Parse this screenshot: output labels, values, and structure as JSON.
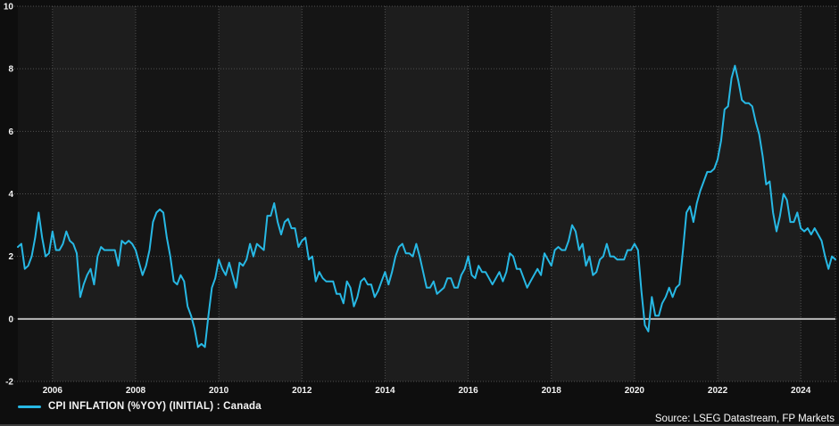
{
  "legend": {
    "series_label": "CPI INFLATION (%YOY) (INITIAL) : Canada"
  },
  "source": "Source: LSEG Datastream, FP Markets",
  "colors": {
    "line": "#27b8e4",
    "band_dark": "#151515",
    "band_light": "#1d1d1d",
    "margin_bg": "#0e0e0e",
    "gridline": "#505050",
    "zero_line": "#b8b8b8",
    "tick_text": "#f2f2f2"
  },
  "chart_data": {
    "type": "line",
    "title": "",
    "xlabel": "",
    "ylabel": "",
    "ylim": [
      -2,
      10
    ],
    "yticks": [
      -2,
      0,
      2,
      4,
      6,
      8,
      10
    ],
    "xticks": [
      2006,
      2008,
      2010,
      2012,
      2014,
      2016,
      2018,
      2020,
      2022,
      2024
    ],
    "grid": "dotted",
    "zero_line": 0,
    "legend_position": "bottom-left",
    "x_start": {
      "year": 2005,
      "month": 3
    },
    "x_end": {
      "year": 2024,
      "month": 11
    },
    "frequency": "monthly",
    "series": [
      {
        "name": "CPI INFLATION (%YOY) (INITIAL) : Canada",
        "color": "#27b8e4",
        "values": [
          2.3,
          2.4,
          1.6,
          1.7,
          2.0,
          2.6,
          3.4,
          2.6,
          2.0,
          2.1,
          2.8,
          2.2,
          2.2,
          2.4,
          2.8,
          2.5,
          2.4,
          2.1,
          0.7,
          1.1,
          1.4,
          1.6,
          1.1,
          2.0,
          2.3,
          2.2,
          2.2,
          2.2,
          2.2,
          1.7,
          2.5,
          2.4,
          2.5,
          2.4,
          2.2,
          1.8,
          1.4,
          1.7,
          2.2,
          3.1,
          3.4,
          3.5,
          3.4,
          2.6,
          2.0,
          1.2,
          1.1,
          1.4,
          1.2,
          0.4,
          0.1,
          -0.3,
          -0.9,
          -0.8,
          -0.9,
          0.1,
          1.0,
          1.3,
          1.9,
          1.6,
          1.4,
          1.8,
          1.4,
          1.0,
          1.8,
          1.7,
          1.9,
          2.4,
          2.0,
          2.4,
          2.3,
          2.2,
          3.3,
          3.3,
          3.7,
          3.1,
          2.7,
          3.1,
          3.2,
          2.9,
          2.9,
          2.3,
          2.5,
          2.6,
          1.9,
          2.0,
          1.2,
          1.5,
          1.3,
          1.2,
          1.2,
          1.2,
          0.8,
          0.8,
          0.5,
          1.2,
          1.0,
          0.4,
          0.7,
          1.2,
          1.3,
          1.1,
          1.1,
          0.7,
          0.9,
          1.2,
          1.5,
          1.1,
          1.5,
          2.0,
          2.3,
          2.4,
          2.1,
          2.1,
          2.0,
          2.4,
          2.0,
          1.5,
          1.0,
          1.0,
          1.2,
          0.8,
          0.9,
          1.0,
          1.3,
          1.3,
          1.0,
          1.0,
          1.4,
          1.6,
          2.0,
          1.4,
          1.3,
          1.7,
          1.5,
          1.5,
          1.3,
          1.1,
          1.3,
          1.5,
          1.2,
          1.5,
          2.1,
          2.0,
          1.6,
          1.6,
          1.3,
          1.0,
          1.2,
          1.4,
          1.6,
          1.4,
          2.1,
          1.9,
          1.7,
          2.2,
          2.3,
          2.2,
          2.2,
          2.5,
          3.0,
          2.8,
          2.2,
          2.4,
          1.7,
          2.0,
          1.4,
          1.5,
          1.9,
          2.0,
          2.4,
          2.0,
          2.0,
          1.9,
          1.9,
          1.9,
          2.2,
          2.2,
          2.4,
          2.2,
          0.9,
          -0.2,
          -0.4,
          0.7,
          0.1,
          0.1,
          0.5,
          0.7,
          1.0,
          0.7,
          1.0,
          1.1,
          2.2,
          3.4,
          3.6,
          3.1,
          3.7,
          4.1,
          4.4,
          4.7,
          4.7,
          4.8,
          5.1,
          5.7,
          6.7,
          6.8,
          7.7,
          8.1,
          7.6,
          7.0,
          6.9,
          6.9,
          6.8,
          6.3,
          5.9,
          5.2,
          4.3,
          4.4,
          3.4,
          2.8,
          3.3,
          4.0,
          3.8,
          3.1,
          3.1,
          3.4,
          2.9,
          2.8,
          2.9,
          2.7,
          2.9,
          2.7,
          2.5,
          2.0,
          1.6,
          2.0,
          1.9
        ]
      }
    ]
  }
}
